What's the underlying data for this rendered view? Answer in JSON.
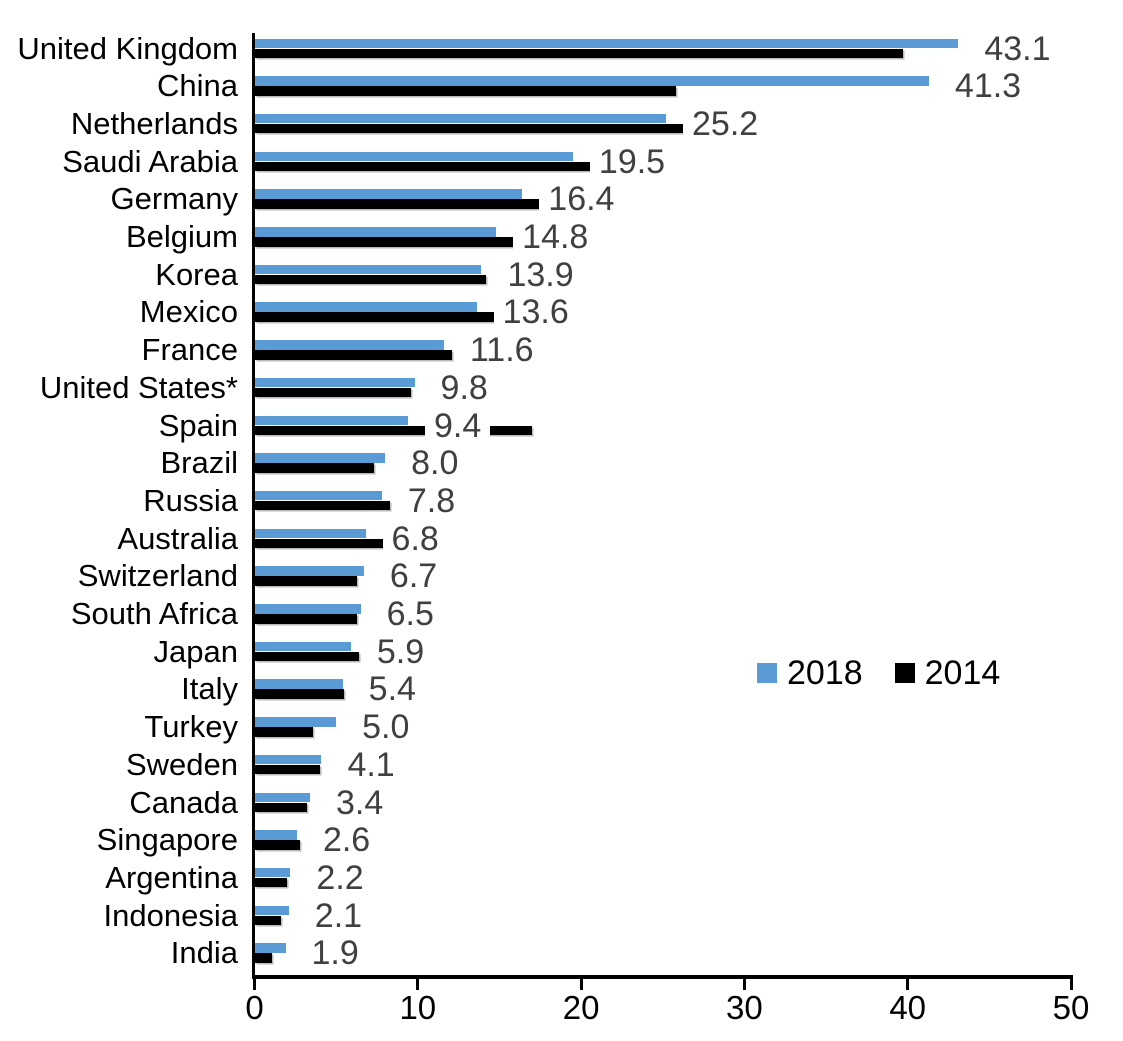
{
  "chart_data": {
    "type": "bar",
    "orientation": "horizontal",
    "title": "",
    "xlabel": "",
    "ylabel": "",
    "xlim": [
      0,
      50
    ],
    "x_ticks": [
      0,
      10,
      20,
      30,
      40,
      50
    ],
    "grid": false,
    "legend_position": "center-right",
    "categories": [
      "United Kingdom",
      "China",
      "Netherlands",
      "Saudi Arabia",
      "Germany",
      "Belgium",
      "Korea",
      "Mexico",
      "France",
      "United States*",
      "Spain",
      "Brazil",
      "Russia",
      "Australia",
      "Switzerland",
      "South Africa",
      "Japan",
      "Italy",
      "Turkey",
      "Sweden",
      "Canada",
      "Singapore",
      "Argentina",
      "Indonesia",
      "India"
    ],
    "series": [
      {
        "name": "2018",
        "color": "#5B9BD5",
        "values": [
          43.1,
          41.3,
          25.2,
          19.5,
          16.4,
          14.8,
          13.9,
          13.6,
          11.6,
          9.8,
          9.4,
          8.0,
          7.8,
          6.8,
          6.7,
          6.5,
          5.9,
          5.4,
          5.0,
          4.1,
          3.4,
          2.6,
          2.2,
          2.1,
          1.9
        ]
      },
      {
        "name": "2014",
        "color": "#000000",
        "values": [
          39.7,
          25.8,
          26.3,
          21.2,
          17.9,
          17.1,
          14.2,
          14.8,
          12.1,
          9.6,
          17.0,
          7.3,
          8.3,
          9.6,
          6.3,
          6.3,
          6.4,
          5.5,
          3.6,
          4.0,
          3.2,
          2.8,
          2.0,
          1.6,
          1.1
        ]
      }
    ],
    "data_labels": {
      "series": "2018",
      "values": [
        "43.1",
        "41.3",
        "25.2",
        "19.5",
        "16.4",
        "14.8",
        "13.9",
        "13.6",
        "11.6",
        "9.8",
        "9.4",
        "8.0",
        "7.8",
        "6.8",
        "6.7",
        "6.5",
        "5.9",
        "5.4",
        "5.0",
        "4.1",
        "3.4",
        "2.6",
        "2.2",
        "2.1",
        "1.9"
      ]
    }
  },
  "legend": {
    "items": [
      {
        "label": "2018",
        "color": "#5B9BD5"
      },
      {
        "label": "2014",
        "color": "#000000"
      }
    ]
  },
  "colors": {
    "series_2018": "#5B9BD5",
    "series_2014": "#000000",
    "value_label_text": "#404040",
    "axis": "#000000",
    "background": "#ffffff"
  }
}
